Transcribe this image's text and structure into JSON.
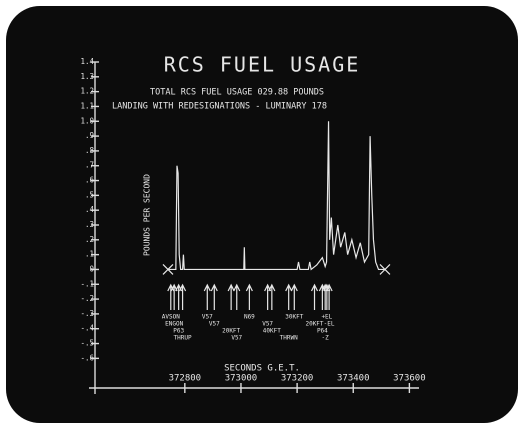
{
  "chart_data": {
    "type": "line",
    "title": "RCS FUEL USAGE",
    "subtitle": [
      "TOTAL RCS FUEL USAGE 029.88 POUNDS",
      "LANDING WITH REDESIGNATIONS - LUMINARY 178"
    ],
    "ylabel": "POUNDS PER SECOND",
    "xlabel": "SECONDS G.E.T.",
    "color": "#e8e8e8",
    "x": [
      372740,
      372768,
      372772,
      372776,
      372780,
      372785,
      372792,
      372795,
      372798,
      373010,
      373012,
      373014,
      373200,
      373205,
      373210,
      373240,
      373245,
      373250,
      373270,
      373290,
      373300,
      373305,
      373312,
      373316,
      373322,
      373330,
      373345,
      373355,
      373370,
      373380,
      373395,
      373410,
      373425,
      373440,
      373455,
      373460,
      373466,
      373472,
      373480,
      373490,
      373513
    ],
    "values": [
      0,
      0,
      0.7,
      0.65,
      0.1,
      0,
      0,
      0.1,
      0,
      0,
      0.15,
      0,
      0,
      0.05,
      0,
      0,
      0.05,
      0,
      0.03,
      0.08,
      0.02,
      0.05,
      1.0,
      0.2,
      0.35,
      0.1,
      0.3,
      0.15,
      0.25,
      0.1,
      0.2,
      0.08,
      0.18,
      0.05,
      0.1,
      0.9,
      0.5,
      0.2,
      0.05,
      0,
      0
    ],
    "xlim": [
      372480,
      373620
    ],
    "ylim": [
      -0.8,
      1.4
    ],
    "xticks": [
      372800,
      373000,
      373200,
      373400,
      373600
    ],
    "yticks": [
      1.4,
      1.3,
      1.2,
      1.1,
      {
        "value": 1.0,
        "label": "1.0"
      },
      {
        "value": 0.9,
        "label": ".9"
      },
      {
        "value": 0.8,
        "label": ".8"
      },
      {
        "value": 0.7,
        "label": ".7"
      },
      {
        "value": 0.6,
        "label": ".6"
      },
      {
        "value": 0.5,
        "label": ".5"
      },
      {
        "value": 0.4,
        "label": ".4"
      },
      {
        "value": 0.3,
        "label": ".3"
      },
      {
        "value": 0.2,
        "label": ".2"
      },
      {
        "value": 0.1,
        "label": ".1"
      },
      0,
      {
        "value": -0.1,
        "label": "-.1"
      },
      {
        "value": -0.2,
        "label": "-.2"
      },
      {
        "value": -0.3,
        "label": "-.3"
      },
      {
        "value": -0.4,
        "label": "-.4"
      },
      {
        "value": -0.5,
        "label": "-.5"
      },
      {
        "value": -0.6,
        "label": "-.6"
      }
    ],
    "annotations": [
      {
        "text": "AVSON",
        "x": 372750
      },
      {
        "text": "ENGON",
        "x": 372762
      },
      {
        "text": "P63",
        "x": 372778
      },
      {
        "text": "THRUP",
        "x": 372792
      },
      {
        "text": "V57",
        "x": 372880
      },
      {
        "text": "V57",
        "x": 372905
      },
      {
        "text": "20KFT",
        "x": 372965
      },
      {
        "text": "V57",
        "x": 372985
      },
      {
        "text": "N69",
        "x": 373030
      },
      {
        "text": "V57",
        "x": 373095
      },
      {
        "text": "40KFT",
        "x": 373110
      },
      {
        "text": "THRWN",
        "x": 373170
      },
      {
        "text": "30KFT",
        "x": 373190
      },
      {
        "text": "20KFT",
        "x": 373262
      },
      {
        "text": "P64",
        "x": 373290
      },
      {
        "text": "-Z",
        "x": 373300
      },
      {
        "text": "+EL",
        "x": 373306
      },
      {
        "text": "-EL",
        "x": 373314
      }
    ]
  }
}
